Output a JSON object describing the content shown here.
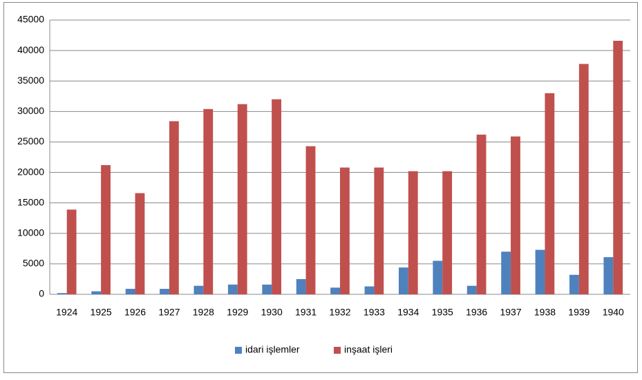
{
  "chart_data": {
    "type": "bar",
    "categories": [
      "1924",
      "1925",
      "1926",
      "1927",
      "1928",
      "1929",
      "1930",
      "1931",
      "1932",
      "1933",
      "1934",
      "1935",
      "1936",
      "1937",
      "1938",
      "1939",
      "1940"
    ],
    "series": [
      {
        "name": "idari işlemler",
        "color": "#4f81bd",
        "values": [
          200,
          500,
          900,
          900,
          1400,
          1600,
          1600,
          2500,
          1100,
          1300,
          4400,
          5500,
          1400,
          7000,
          7300,
          3200,
          6100
        ]
      },
      {
        "name": "inşaat işleri",
        "color": "#c0504d",
        "values": [
          13900,
          21200,
          16600,
          28400,
          30400,
          31200,
          32000,
          24300,
          20800,
          20800,
          20200,
          20200,
          26200,
          25900,
          33000,
          37800,
          41600
        ]
      }
    ],
    "ylim": [
      0,
      45000
    ],
    "yticks": [
      0,
      5000,
      10000,
      15000,
      20000,
      25000,
      30000,
      35000,
      40000,
      45000
    ],
    "grid": true,
    "legend": "bottom"
  }
}
